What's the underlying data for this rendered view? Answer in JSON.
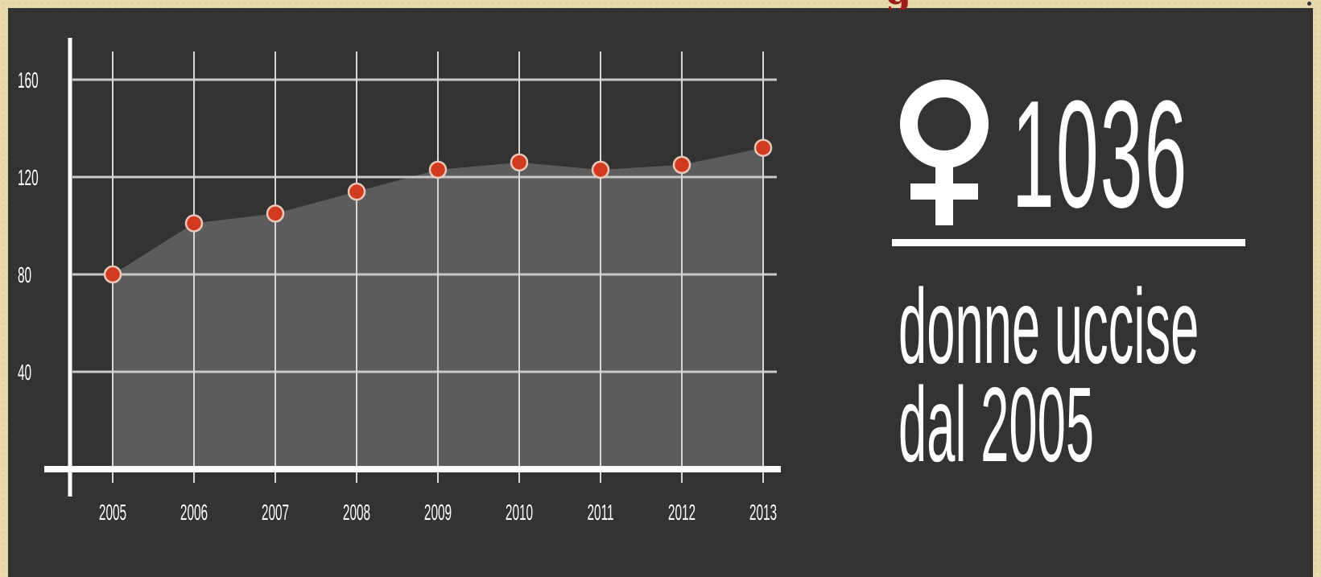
{
  "header": {
    "title_fragment": "g"
  },
  "chart_data": {
    "type": "area",
    "categories": [
      "2005",
      "2006",
      "2007",
      "2008",
      "2009",
      "2010",
      "2011",
      "2012",
      "2013"
    ],
    "series": [
      {
        "values": [
          80,
          101,
          105,
          114,
          123,
          126,
          123,
          125,
          132
        ]
      }
    ],
    "yticks": [
      40,
      80,
      120,
      160
    ],
    "ylim": [
      0,
      170
    ],
    "grid": true,
    "colors": {
      "background": "#333333",
      "area": "#5c5c5c",
      "marker": "#d13a1e",
      "line": "#ffffff"
    }
  },
  "stat": {
    "icon": "venus-icon",
    "count": "1036",
    "caption_line1": "donne uccise",
    "caption_line2": "dal 2005"
  }
}
